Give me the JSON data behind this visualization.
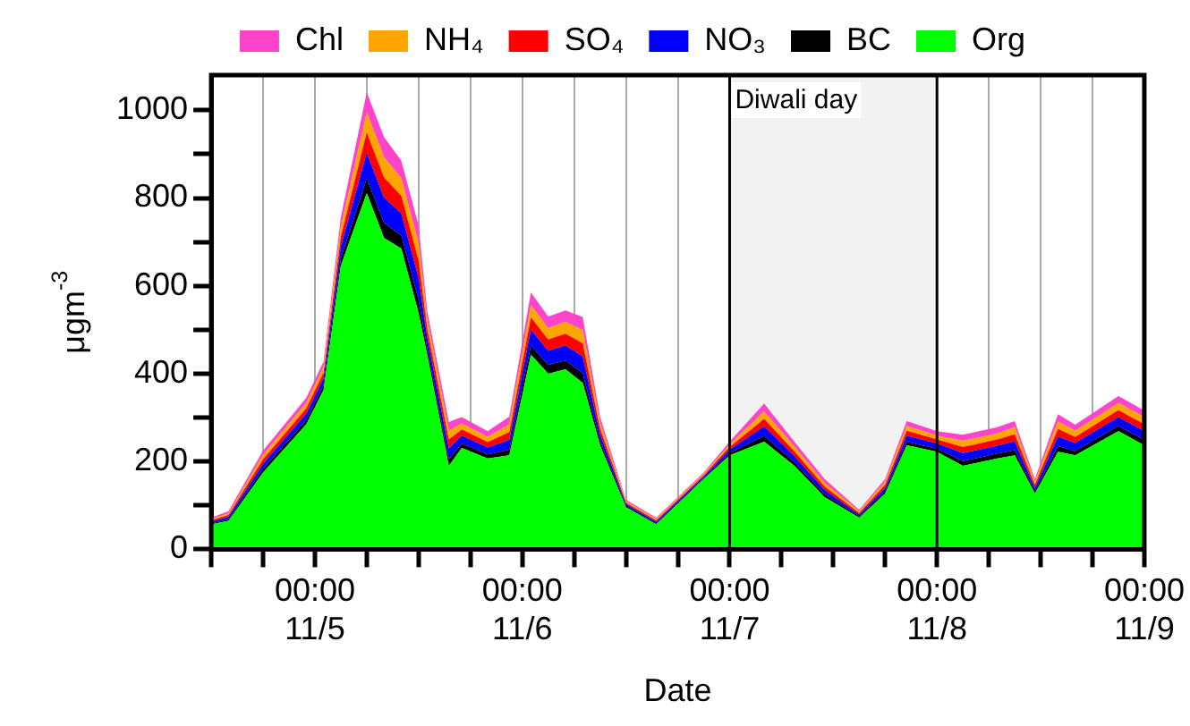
{
  "chart_data": {
    "type": "area",
    "stacked": true,
    "xlabel": "Date",
    "ylabel": "μgm$^{-3}$",
    "x": [
      "--11-04T12:00",
      "--11-04T14:00",
      "--11-04T18:00",
      "--11-04T23:00",
      "--11-05T01:00",
      "--11-05T03:00",
      "--11-05T06:00",
      "--11-05T08:00",
      "--11-05T10:00",
      "--11-05T12:00",
      "--11-05T13:00",
      "--11-05T15:30",
      "--11-05T17:00",
      "--11-05T20:00",
      "--11-05T22:30",
      "--11-06T01:00",
      "--11-06T03:00",
      "--11-06T05:00",
      "--11-06T07:00",
      "--11-06T09:00",
      "--11-06T12:00",
      "--11-06T15:30",
      "--11-06T21:00",
      "--11-07T00:00",
      "--11-07T04:00",
      "--11-07T07:30",
      "--11-07T11:00",
      "--11-07T15:00",
      "--11-07T18:00",
      "--11-07T20:30",
      "--11-08T00:00",
      "--11-08T03:00",
      "--11-08T07:00",
      "--11-08T09:00",
      "--11-08T11:20",
      "--11-08T14:00",
      "--11-08T16:00",
      "--11-08T21:00",
      "--11-09T00:00"
    ],
    "series": [
      {
        "name": "Org",
        "color": "#00ff00",
        "values": [
          57,
          65,
          175,
          285,
          363,
          646,
          811,
          709,
          685,
          538,
          443,
          190,
          231,
          207,
          214,
          443,
          400,
          410,
          379,
          237,
          96,
          57,
          160,
          214,
          245,
          190,
          119,
          72,
          127,
          237,
          222,
          190,
          207,
          214,
          127,
          222,
          214,
          269,
          237
        ]
      },
      {
        "name": "BC",
        "color": "#000000",
        "values": [
          2,
          3,
          8,
          9,
          10,
          16,
          34,
          34,
          30,
          30,
          15,
          15,
          10,
          9,
          13,
          21,
          20,
          20,
          22,
          10,
          3,
          2,
          2,
          5,
          13,
          8,
          6,
          3,
          5,
          8,
          7,
          11,
          11,
          12,
          5,
          13,
          10,
          12,
          12
        ]
      },
      {
        "name": "NO₃",
        "color": "#0000ff",
        "values": [
          4,
          6,
          12,
          15,
          16,
          28,
          58,
          58,
          50,
          50,
          25,
          25,
          18,
          16,
          22,
          36,
          32,
          34,
          38,
          16,
          4,
          4,
          4,
          8,
          22,
          14,
          10,
          4,
          8,
          14,
          12,
          18,
          18,
          20,
          8,
          22,
          18,
          20,
          20
        ]
      },
      {
        "name": "SO₄",
        "color": "#ff0000",
        "values": [
          3,
          4,
          10,
          12,
          13,
          22,
          46,
          46,
          40,
          40,
          20,
          20,
          14,
          12,
          18,
          28,
          26,
          27,
          30,
          13,
          3,
          3,
          3,
          6,
          17,
          11,
          8,
          4,
          7,
          11,
          9,
          14,
          14,
          16,
          7,
          17,
          14,
          16,
          16
        ]
      },
      {
        "name": "NH₄",
        "color": "#ffa500",
        "values": [
          3,
          4,
          10,
          12,
          13,
          22,
          46,
          46,
          40,
          40,
          20,
          20,
          14,
          12,
          18,
          28,
          26,
          27,
          30,
          13,
          3,
          3,
          3,
          6,
          17,
          11,
          8,
          4,
          7,
          11,
          9,
          14,
          14,
          16,
          7,
          17,
          14,
          16,
          16
        ]
      },
      {
        "name": "Chl",
        "color": "#ff44cc",
        "values": [
          3,
          5,
          10,
          12,
          13,
          22,
          46,
          46,
          40,
          40,
          20,
          20,
          14,
          13,
          17,
          29,
          26,
          26,
          30,
          13,
          4,
          3,
          3,
          6,
          18,
          11,
          9,
          3,
          6,
          11,
          10,
          14,
          14,
          14,
          6,
          17,
          14,
          16,
          15
        ]
      }
    ],
    "xlim": [
      "--11-04T12:00",
      "--11-09T00:00"
    ],
    "xticks": [
      {
        "value": "--11-04T12:00",
        "label": null
      },
      {
        "value": "--11-04T18:00",
        "label": null
      },
      {
        "value": "--11-05T00:00",
        "label": "00:00\n11/5"
      },
      {
        "value": "--11-05T06:00",
        "label": null
      },
      {
        "value": "--11-05T12:00",
        "label": null
      },
      {
        "value": "--11-05T18:00",
        "label": null
      },
      {
        "value": "--11-06T00:00",
        "label": "00:00\n11/6"
      },
      {
        "value": "--11-06T06:00",
        "label": null
      },
      {
        "value": "--11-06T12:00",
        "label": null
      },
      {
        "value": "--11-06T18:00",
        "label": null
      },
      {
        "value": "--11-07T00:00",
        "label": "00:00\n11/7"
      },
      {
        "value": "--11-07T06:00",
        "label": null
      },
      {
        "value": "--11-07T12:00",
        "label": null
      },
      {
        "value": "--11-07T18:00",
        "label": null
      },
      {
        "value": "--11-08T00:00",
        "label": "00:00\n11/8"
      },
      {
        "value": "--11-08T06:00",
        "label": null
      },
      {
        "value": "--11-08T12:00",
        "label": null
      },
      {
        "value": "--11-08T18:00",
        "label": null
      },
      {
        "value": "--11-09T00:00",
        "label": "00:00\n11/9"
      }
    ],
    "ylim": [
      0,
      1080
    ],
    "yticks": [
      0,
      {
        "value": 100,
        "label": null
      },
      200,
      {
        "value": 300,
        "label": null
      },
      400,
      {
        "value": 500,
        "label": null
      },
      600,
      {
        "value": 700,
        "label": null
      },
      800,
      {
        "value": 900,
        "label": null
      },
      1000
    ],
    "bands": [
      {
        "axis": "x",
        "from": "--11-07T00:00",
        "to": "--11-08T00:00",
        "label": "Diwali day",
        "color": "#f2f2f2"
      }
    ],
    "grid": "x",
    "legend": "top"
  }
}
